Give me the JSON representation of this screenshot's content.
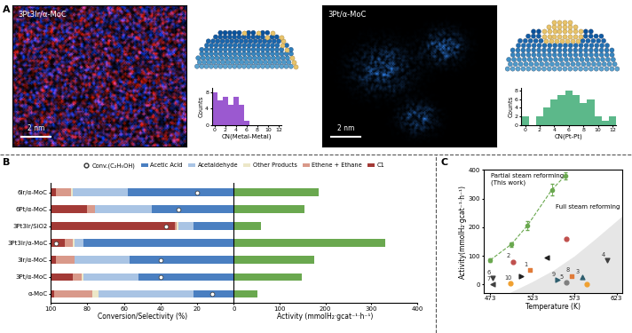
{
  "panel_labels": [
    "A",
    "B",
    "C"
  ],
  "images": [
    {
      "title": "3Pt3Ir/α-MoC",
      "scale_bar": "2 nm"
    },
    {
      "title": "3Pt/α-MoC",
      "scale_bar": "2 nm"
    }
  ],
  "chart_data": [
    {
      "type": "bar",
      "x_label": "CN(Metal-Metal)",
      "y_label": "Counts",
      "x": [
        0,
        1,
        2,
        3,
        4,
        5,
        6
      ],
      "values": [
        8,
        6,
        7,
        5,
        7,
        5,
        1
      ],
      "color": "#9b59d0",
      "xlim": [
        -0.5,
        12.5
      ],
      "xticks": [
        0,
        2,
        4,
        6,
        8,
        10,
        12
      ],
      "ylim": [
        0,
        9
      ],
      "yticks": [
        0,
        4,
        8
      ]
    },
    {
      "type": "bar",
      "x_label": "CN(Pt-Pt)",
      "y_label": "Counts",
      "x": [
        0,
        1,
        2,
        3,
        4,
        5,
        6,
        7,
        8,
        9,
        10,
        11,
        12
      ],
      "values": [
        2,
        0,
        2,
        4,
        6,
        7,
        8,
        7,
        5,
        6,
        2,
        1,
        2
      ],
      "color": "#5cb88a",
      "xlim": [
        -0.5,
        12.5
      ],
      "xticks": [
        0,
        2,
        4,
        6,
        8,
        10,
        12
      ],
      "ylim": [
        0,
        8.5
      ],
      "yticks": [
        0,
        2,
        4,
        6,
        8
      ]
    },
    {
      "type": "bar",
      "orientation": "horizontal",
      "stacked": true,
      "legend": "upper center",
      "categories": [
        "6Ir/α-MoC",
        "6Pt/α-MoC",
        "3Pt3Ir/SiO2",
        "3Pt3Ir/α-MoC",
        "3Ir/α-MoC",
        "3Pt/α-MoC",
        "α-MoC"
      ],
      "conversion": {
        "name": "Conv.(C₂H₅OH)",
        "values": [
          20,
          30,
          37,
          97,
          40,
          40,
          12
        ],
        "color": "#ffffff",
        "marker": "circle"
      },
      "series": [
        {
          "name": "Acetic Acid",
          "color": "#4a7fc1",
          "values": [
            58,
            45,
            22,
            82,
            57,
            52,
            22
          ]
        },
        {
          "name": "Acetaldehyde",
          "color": "#a9c4e4",
          "values": [
            30,
            31,
            8,
            5,
            30,
            30,
            52
          ]
        },
        {
          "name": "Other Products",
          "color": "#ece7c8",
          "values": [
            1,
            0,
            1,
            1,
            0,
            1,
            3
          ]
        },
        {
          "name": "Ethene + Ethane",
          "color": "#d9998a",
          "values": [
            8,
            4,
            1,
            4,
            10,
            5,
            21
          ]
        },
        {
          "name": "C1",
          "color": "#a33a36",
          "values": [
            3,
            20,
            68,
            8,
            3,
            12,
            2
          ]
        }
      ],
      "x_label": "Conversion/Selectivity (%)",
      "xlim": [
        100,
        0
      ],
      "xticks": [
        100,
        80,
        60,
        40,
        20,
        0
      ],
      "activity": {
        "values": [
          185,
          155,
          60,
          330,
          175,
          148,
          52
        ],
        "color": "#6aa84f"
      },
      "x2_label": "Activity (mmolH₂·gcat⁻¹·h⁻¹)",
      "x2lim": [
        0,
        400
      ],
      "x2ticks": [
        100,
        200,
        300,
        400
      ]
    },
    {
      "type": "scatter",
      "x_label": "Temperature (K)",
      "y_label": "Activity(mmolH₂·gcat⁻¹·h⁻¹)",
      "xlim": [
        465,
        630
      ],
      "xticks": [
        473,
        523,
        573,
        623
      ],
      "ylim": [
        -30,
        400
      ],
      "yticks": [
        0,
        100,
        200,
        300,
        400
      ],
      "series": [
        {
          "x": [
            473,
            498,
            517,
            546,
            562
          ],
          "values": [
            85,
            140,
            205,
            330,
            380
          ],
          "error": [
            5,
            8,
            15,
            20,
            12
          ],
          "color": "#6aa84f",
          "marker": "circle",
          "line_style": "dashed"
        }
      ],
      "references": [
        {
          "label": "1",
          "x": 520,
          "y": 50,
          "marker": "square",
          "color": "#e07b39"
        },
        {
          "label": "2",
          "x": 500,
          "y": 80,
          "marker": "circle",
          "color": "#c0504d"
        },
        {
          "label": "3",
          "x": 582,
          "y": 25,
          "marker": "triangle_up",
          "color": "#2e5e6e"
        },
        {
          "label": "4",
          "x": 612,
          "y": 85,
          "marker": "triangle_down",
          "color": "#404040"
        },
        {
          "label": "5",
          "x": 563,
          "y": 8,
          "marker": "circle",
          "color": "#7f7f7f"
        },
        {
          "label": "6",
          "x": 476,
          "y": 22,
          "marker": "triangle_down",
          "color": "#404040"
        },
        {
          "label": "7",
          "x": 476,
          "y": 0,
          "marker": "triangle_left",
          "color": "#404040"
        },
        {
          "label": "8",
          "x": 570,
          "y": 30,
          "marker": "square",
          "color": "#e07b39"
        },
        {
          "label": "9",
          "x": 553,
          "y": 15,
          "marker": "triangle_right",
          "color": "#2e5e6e"
        },
        {
          "label": "10",
          "x": 497,
          "y": 5,
          "marker": "circle",
          "color": "#f0a030"
        },
        {
          "label": null,
          "x": 540,
          "y": 95,
          "marker": "triangle_left",
          "color": "#202020"
        },
        {
          "label": null,
          "x": 563,
          "y": 160,
          "marker": "circle",
          "color": "#c0504d"
        },
        {
          "label": null,
          "x": 510,
          "y": 30,
          "marker": "triangle_right",
          "color": "#202020"
        },
        {
          "label": null,
          "x": 588,
          "y": 0,
          "marker": "circle",
          "color": "#f0a030"
        }
      ],
      "full_steam_region": {
        "x": [
          495,
          523,
          548,
          573,
          598,
          630
        ],
        "y": [
          -30,
          10,
          50,
          100,
          160,
          240
        ]
      },
      "annotations": [
        "Partial steam reforming\n(This work)",
        "Full steam reforming"
      ]
    }
  ]
}
